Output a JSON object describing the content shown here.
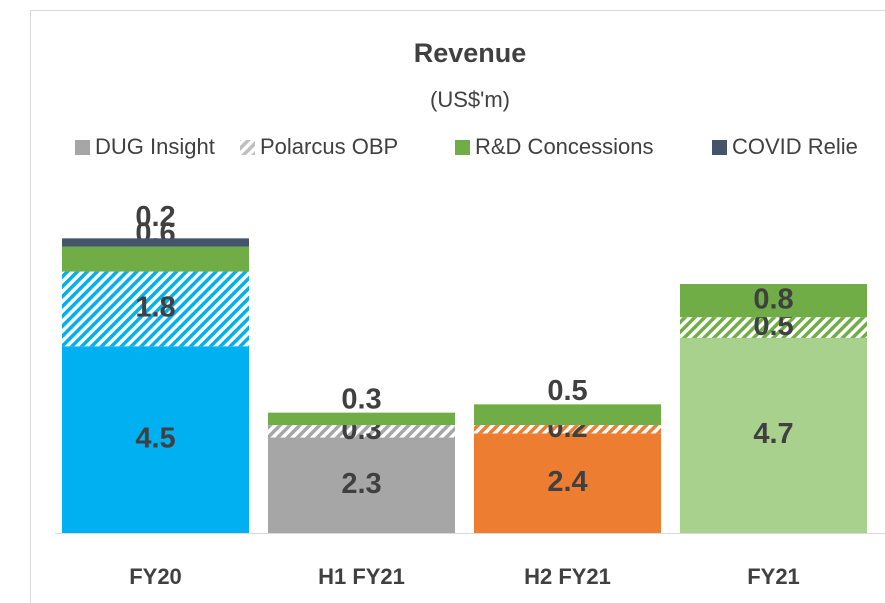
{
  "chart_data": {
    "type": "stacked_bar",
    "title": "Revenue",
    "subtitle": "(US$'m)",
    "categories": [
      "FY20",
      "H1 FY21",
      "H2 FY21",
      "FY21"
    ],
    "series": [
      {
        "name": "DUG Insight",
        "color": "#a6a6a6",
        "bar_colors": [
          "#00b0f0",
          "#a6a6a6",
          "#ed7d31",
          "#a9d18e"
        ],
        "values": [
          4.5,
          2.3,
          2.4,
          4.7
        ]
      },
      {
        "name": "Polarcus OBP",
        "color": "#bfbfbf",
        "pattern": "hatch",
        "bar_colors": [
          "#00b0f0",
          "#a6a6a6",
          "#ed7d31",
          "#70ad47"
        ],
        "values": [
          1.8,
          0.3,
          0.2,
          0.5
        ]
      },
      {
        "name": "R&D Concessions",
        "color": "#70ad47",
        "values": [
          0.6,
          0.3,
          0.5,
          0.8
        ]
      },
      {
        "name": "COVID Relie",
        "color": "#44546a",
        "values": [
          0.2,
          null,
          null,
          null
        ]
      }
    ],
    "ylim": [
      0,
      8
    ]
  }
}
